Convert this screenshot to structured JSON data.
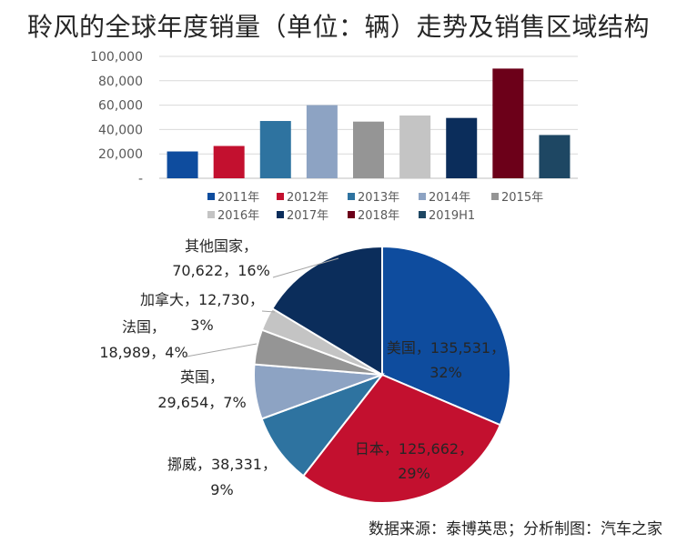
{
  "title": "聆风的全球年度销量（单位：辆）走势及销售区域结构",
  "source": "数据来源：泰博英思；分析制图：汽车之家",
  "chart_data": [
    {
      "type": "bar",
      "categories": [
        "2011年",
        "2012年",
        "2013年",
        "2014年",
        "2015年",
        "2016年",
        "2017年",
        "2018年",
        "2019H1"
      ],
      "values": [
        22000,
        26500,
        47000,
        60000,
        46500,
        51500,
        49500,
        90000,
        35500
      ],
      "colors": [
        "#0E4C9E",
        "#C3102F",
        "#2E73A0",
        "#8DA3C3",
        "#959595",
        "#C4C4C4",
        "#0B2D5B",
        "#6C0019",
        "#1E4763"
      ],
      "ylim": [
        0,
        100000
      ],
      "yticks": [
        0,
        20000,
        40000,
        60000,
        80000,
        100000
      ],
      "ytick_labels": [
        "-",
        "20,000",
        "40,000",
        "60,000",
        "80,000",
        "100,000"
      ],
      "grid": true,
      "legend_placement": "bottom"
    },
    {
      "type": "pie",
      "slices": [
        {
          "label": "美国",
          "value": 135531,
          "percent": "32%",
          "color": "#0E4C9E",
          "text_lines": [
            "美国，135,531，",
            "32%"
          ]
        },
        {
          "label": "日本",
          "value": 125662,
          "percent": "29%",
          "color": "#C3102F",
          "text_lines": [
            "日本，125,662，",
            "29%"
          ]
        },
        {
          "label": "挪威",
          "value": 38331,
          "percent": "9%",
          "color": "#2E73A0",
          "text_lines": [
            "挪威，38,331，",
            "9%"
          ]
        },
        {
          "label": "英国",
          "value": 29654,
          "percent": "7%",
          "color": "#8DA3C3",
          "text_lines": [
            "英国，",
            "29,654，7%"
          ]
        },
        {
          "label": "法国",
          "value": 18989,
          "percent": "4%",
          "color": "#959595",
          "text_lines": [
            "法国，",
            "18,989，4%"
          ]
        },
        {
          "label": "加拿大",
          "value": 12730,
          "percent": "3%",
          "color": "#C4C4C4",
          "text_lines": [
            "加拿大，12,730，",
            "3%"
          ]
        },
        {
          "label": "其他国家",
          "value": 70622,
          "percent": "16%",
          "color": "#0B2D5B",
          "text_lines": [
            "其他国家，",
            "70,622，16%"
          ]
        }
      ]
    }
  ]
}
